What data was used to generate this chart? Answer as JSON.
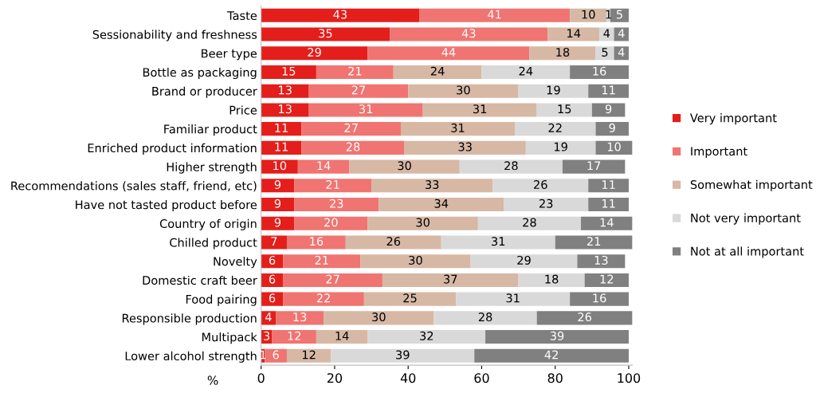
{
  "chart_data": {
    "type": "bar",
    "orientation": "horizontal",
    "stacked": true,
    "data_labels": true,
    "xlabel": "%",
    "legend": "right",
    "grid": false,
    "categories": [
      "Taste",
      "Sessionability and freshness",
      "Beer type",
      "Bottle as packaging",
      "Brand or producer",
      "Price",
      "Familiar product",
      "Enriched product information",
      "Higher strength",
      "Recommendations (sales staff, friend, etc)",
      "Have not tasted product before",
      "Country of origin",
      "Chilled product",
      "Novelty",
      "Domestic craft beer",
      "Food pairing",
      "Responsible production",
      "Multipack",
      "Lower alcohol strength"
    ],
    "xlim": [
      0,
      101
    ],
    "xticks": [
      0,
      20,
      40,
      60,
      80,
      100
    ],
    "series": [
      {
        "name": "Very important",
        "color": "#e41e1a",
        "values": [
          43,
          35,
          29,
          15,
          13,
          13,
          11,
          11,
          10,
          9,
          9,
          9,
          7,
          6,
          6,
          6,
          4,
          3,
          1
        ]
      },
      {
        "name": "Important",
        "color": "#f07471",
        "values": [
          41,
          43,
          44,
          21,
          27,
          31,
          27,
          28,
          14,
          21,
          23,
          20,
          16,
          21,
          27,
          22,
          13,
          12,
          6
        ]
      },
      {
        "name": "Somewhat important",
        "color": "#d6b8a5",
        "values": [
          10,
          14,
          18,
          24,
          30,
          31,
          31,
          33,
          30,
          33,
          34,
          30,
          26,
          30,
          37,
          25,
          30,
          14,
          12
        ]
      },
      {
        "name": "Not very important",
        "color": "#d9d9d9",
        "values": [
          1,
          4,
          5,
          24,
          19,
          15,
          22,
          19,
          28,
          26,
          23,
          28,
          31,
          29,
          18,
          31,
          28,
          32,
          39
        ]
      },
      {
        "name": "Not at all important",
        "color": "#808080",
        "values": [
          5,
          4,
          4,
          16,
          11,
          9,
          9,
          10,
          17,
          11,
          11,
          14,
          21,
          13,
          12,
          16,
          26,
          39,
          42
        ]
      }
    ]
  }
}
